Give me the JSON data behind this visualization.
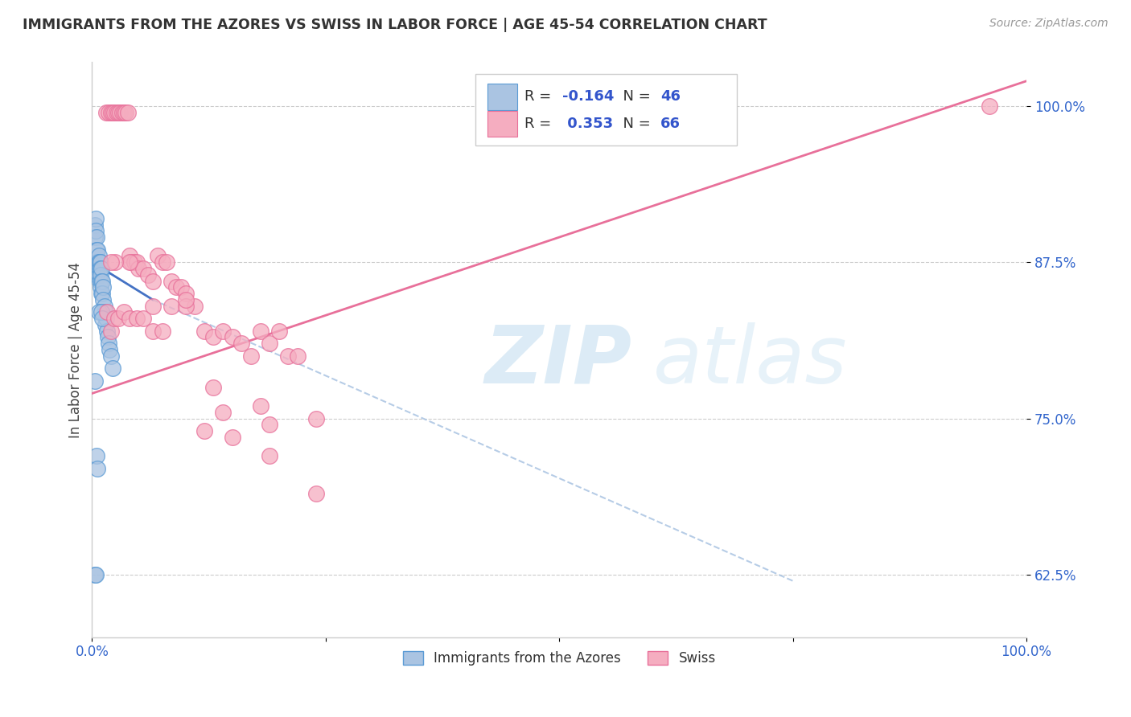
{
  "title": "IMMIGRANTS FROM THE AZORES VS SWISS IN LABOR FORCE | AGE 45-54 CORRELATION CHART",
  "source": "Source: ZipAtlas.com",
  "ylabel": "In Labor Force | Age 45-54",
  "xlim": [
    0.0,
    1.0
  ],
  "ylim": [
    0.575,
    1.035
  ],
  "yticks": [
    0.625,
    0.75,
    0.875,
    1.0
  ],
  "ytick_labels": [
    "62.5%",
    "75.0%",
    "87.5%",
    "100.0%"
  ],
  "xticks": [
    0.0,
    0.25,
    0.5,
    0.75,
    1.0
  ],
  "xtick_labels": [
    "0.0%",
    "",
    "",
    "",
    "100.0%"
  ],
  "legend_r_azores": "-0.164",
  "legend_n_azores": "46",
  "legend_r_swiss": "0.353",
  "legend_n_swiss": "66",
  "azores_color": "#aac4e2",
  "swiss_color": "#f5adc0",
  "azores_edge_color": "#5b9bd5",
  "swiss_edge_color": "#e8709a",
  "azores_line_color": "#4472C4",
  "swiss_line_color": "#e8709a",
  "dashed_line_color": "#aac4e2",
  "watermark_zip": "ZIP",
  "watermark_atlas": "atlas",
  "azores_x": [
    0.003,
    0.003,
    0.004,
    0.004,
    0.005,
    0.005,
    0.005,
    0.005,
    0.006,
    0.006,
    0.006,
    0.007,
    0.007,
    0.007,
    0.008,
    0.008,
    0.008,
    0.009,
    0.009,
    0.009,
    0.009,
    0.01,
    0.01,
    0.01,
    0.011,
    0.011,
    0.012,
    0.012,
    0.013,
    0.014,
    0.014,
    0.015,
    0.016,
    0.017,
    0.018,
    0.019,
    0.02,
    0.022,
    0.003,
    0.003,
    0.004,
    0.005,
    0.006,
    0.007,
    0.01,
    0.011
  ],
  "azores_y": [
    0.905,
    0.895,
    0.91,
    0.9,
    0.895,
    0.885,
    0.875,
    0.865,
    0.885,
    0.875,
    0.87,
    0.88,
    0.875,
    0.865,
    0.875,
    0.87,
    0.86,
    0.875,
    0.87,
    0.865,
    0.855,
    0.87,
    0.86,
    0.85,
    0.86,
    0.85,
    0.855,
    0.845,
    0.84,
    0.835,
    0.825,
    0.83,
    0.82,
    0.815,
    0.81,
    0.805,
    0.8,
    0.79,
    0.78,
    0.625,
    0.625,
    0.72,
    0.71,
    0.835,
    0.835,
    0.83
  ],
  "swiss_x": [
    0.015,
    0.018,
    0.02,
    0.022,
    0.024,
    0.026,
    0.028,
    0.03,
    0.032,
    0.034,
    0.036,
    0.038,
    0.04,
    0.042,
    0.045,
    0.048,
    0.05,
    0.055,
    0.06,
    0.065,
    0.07,
    0.075,
    0.08,
    0.085,
    0.09,
    0.095,
    0.1,
    0.11,
    0.12,
    0.13,
    0.14,
    0.15,
    0.16,
    0.17,
    0.18,
    0.19,
    0.2,
    0.21,
    0.22,
    0.24,
    0.016,
    0.02,
    0.024,
    0.028,
    0.034,
    0.04,
    0.048,
    0.055,
    0.065,
    0.075,
    0.085,
    0.1,
    0.12,
    0.15,
    0.19,
    0.14,
    0.24,
    0.13,
    0.1,
    0.065,
    0.04,
    0.025,
    0.02,
    0.18,
    0.19,
    0.96
  ],
  "swiss_y": [
    0.995,
    0.995,
    0.995,
    0.995,
    0.995,
    0.995,
    0.995,
    0.995,
    0.995,
    0.995,
    0.995,
    0.995,
    0.88,
    0.875,
    0.875,
    0.875,
    0.87,
    0.87,
    0.865,
    0.86,
    0.88,
    0.875,
    0.875,
    0.86,
    0.855,
    0.855,
    0.85,
    0.84,
    0.82,
    0.815,
    0.82,
    0.815,
    0.81,
    0.8,
    0.82,
    0.81,
    0.82,
    0.8,
    0.8,
    0.75,
    0.835,
    0.82,
    0.83,
    0.83,
    0.835,
    0.83,
    0.83,
    0.83,
    0.82,
    0.82,
    0.84,
    0.84,
    0.74,
    0.735,
    0.72,
    0.755,
    0.69,
    0.775,
    0.845,
    0.84,
    0.875,
    0.875,
    0.875,
    0.76,
    0.745,
    1.0
  ],
  "azores_trend_x0": 0.0,
  "azores_trend_x1": 0.065,
  "azores_trend_y0": 0.875,
  "azores_trend_y1": 0.845,
  "azores_trend_ext_x1": 0.75,
  "azores_trend_ext_y1": 0.62,
  "swiss_trend_x0": 0.0,
  "swiss_trend_x1": 1.0,
  "swiss_trend_y0": 0.77,
  "swiss_trend_y1": 1.02
}
